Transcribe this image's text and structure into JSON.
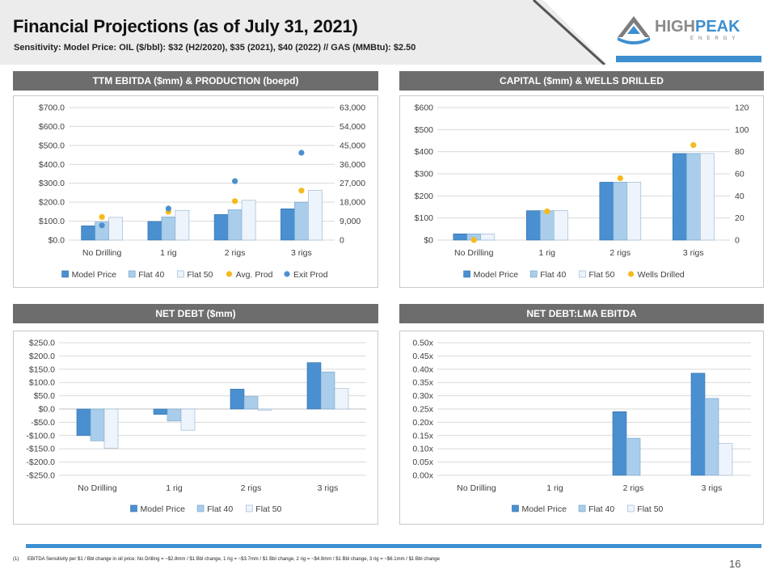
{
  "header": {
    "title": "Financial Projections (as of July 31, 2021)",
    "subtitle": "Sensitivity: Model Price: OIL ($/bbl): $32 (H2/2020), $35 (2021), $40 (2022) // GAS (MMBtu):  $2.50"
  },
  "logo": {
    "word1": "HIGH",
    "word2": "PEAK",
    "sub": "ENERGY"
  },
  "colors": {
    "model_price": "#4a90d0",
    "flat40": "#a9cdea",
    "flat50": "#eef4fb",
    "avg_prod": "#f5b91a",
    "exit_prod": "#4a90d0",
    "panel_header": "#6d6d6d",
    "accent": "#3d8fd0"
  },
  "panels": {
    "ebitda": {
      "heading": "TTM EBITDA ($mm) & PRODUCTION (boepd)"
    },
    "capital": {
      "heading": "CAPITAL ($mm) & WELLS DRILLED"
    },
    "netdebt": {
      "heading": "NET DEBT  ($mm)"
    },
    "ratio": {
      "heading": "NET DEBT:LMA EBITDA"
    }
  },
  "chart_data": [
    {
      "id": "ebitda",
      "type": "bar",
      "categories": [
        "No Drilling",
        "1 rig",
        "2 rigs",
        "3 rigs"
      ],
      "series": [
        {
          "name": "Model Price",
          "values": [
            75,
            98,
            135,
            165
          ]
        },
        {
          "name": "Flat 40",
          "values": [
            95,
            122,
            160,
            200
          ]
        },
        {
          "name": "Flat 50",
          "values": [
            120,
            157,
            210,
            262
          ]
        }
      ],
      "secondary_series": [
        {
          "name": "Avg. Prod",
          "type": "scatter",
          "values": [
            11000,
            13500,
            18500,
            23500
          ]
        },
        {
          "name": "Exit Prod",
          "type": "scatter",
          "values": [
            7000,
            15000,
            28000,
            41500
          ]
        }
      ],
      "y_ticks": [
        "$0.0",
        "$100.0",
        "$200.0",
        "$300.0",
        "$400.0",
        "$500.0",
        "$600.0",
        "$700.0"
      ],
      "y2_ticks": [
        "0",
        "9,000",
        "18,000",
        "27,000",
        "36,000",
        "45,000",
        "54,000",
        "63,000"
      ],
      "ylim": [
        0,
        700
      ],
      "y2lim": [
        0,
        63000
      ],
      "grid": true,
      "legend": "bottom"
    },
    {
      "id": "capital",
      "type": "bar",
      "categories": [
        "No Drilling",
        "1 rig",
        "2 rigs",
        "3 rigs"
      ],
      "series": [
        {
          "name": "Model Price",
          "values": [
            28,
            133,
            262,
            392
          ]
        },
        {
          "name": "Flat 40",
          "values": [
            28,
            133,
            262,
            392
          ]
        },
        {
          "name": "Flat 50",
          "values": [
            28,
            133,
            262,
            392
          ]
        }
      ],
      "secondary_series": [
        {
          "name": "Wells Drilled",
          "type": "scatter",
          "values": [
            0,
            26,
            56,
            86
          ]
        }
      ],
      "y_ticks": [
        "$0",
        "$100",
        "$200",
        "$300",
        "$400",
        "$500",
        "$600"
      ],
      "y2_ticks": [
        "0",
        "20",
        "40",
        "60",
        "80",
        "100",
        "120"
      ],
      "ylim": [
        0,
        600
      ],
      "y2lim": [
        0,
        120
      ],
      "grid": true,
      "legend": "bottom"
    },
    {
      "id": "netdebt",
      "type": "bar",
      "categories": [
        "No Drilling",
        "1 rig",
        "2 rigs",
        "3 rigs"
      ],
      "series": [
        {
          "name": "Model Price",
          "values": [
            -100,
            -20,
            75,
            175
          ]
        },
        {
          "name": "Flat 40",
          "values": [
            -120,
            -45,
            47,
            140
          ]
        },
        {
          "name": "Flat 50",
          "values": [
            -148,
            -80,
            -5,
            77
          ]
        }
      ],
      "y_ticks": [
        "-$250.0",
        "-$200.0",
        "-$150.0",
        "-$100.0",
        "-$50.0",
        "$0.0",
        "$50.0",
        "$100.0",
        "$150.0",
        "$200.0",
        "$250.0"
      ],
      "ylim": [
        -250,
        250
      ],
      "grid": true,
      "legend": "bottom"
    },
    {
      "id": "ratio",
      "type": "bar",
      "categories": [
        "No Drilling",
        "1 rig",
        "2 rigs",
        "3 rigs"
      ],
      "series": [
        {
          "name": "Model Price",
          "values": [
            0,
            0,
            0.24,
            0.385
          ]
        },
        {
          "name": "Flat 40",
          "values": [
            0,
            0,
            0.14,
            0.29
          ]
        },
        {
          "name": "Flat 50",
          "values": [
            0,
            0,
            0,
            0.12
          ]
        }
      ],
      "y_ticks": [
        "0.00x",
        "0.05x",
        "0.10x",
        "0.15x",
        "0.20x",
        "0.25x",
        "0.30x",
        "0.35x",
        "0.40x",
        "0.45x",
        "0.50x"
      ],
      "ylim": [
        0,
        0.5
      ],
      "grid": true,
      "legend": "bottom"
    }
  ],
  "footer": {
    "footnote_num": "(1)",
    "footnote_text": "EBITDA Sensitivity per $1 / Bbl change in oil price: No Drilling = ~$2.8mm / $1 Bbl change, 1 rig = ~$3.7mm / $1 Bbl change, 2 rig = ~$4.9mm / $1 Bbl change, 3 rig = ~$6.1mm / $1 Bbl change",
    "page_number": "16"
  }
}
